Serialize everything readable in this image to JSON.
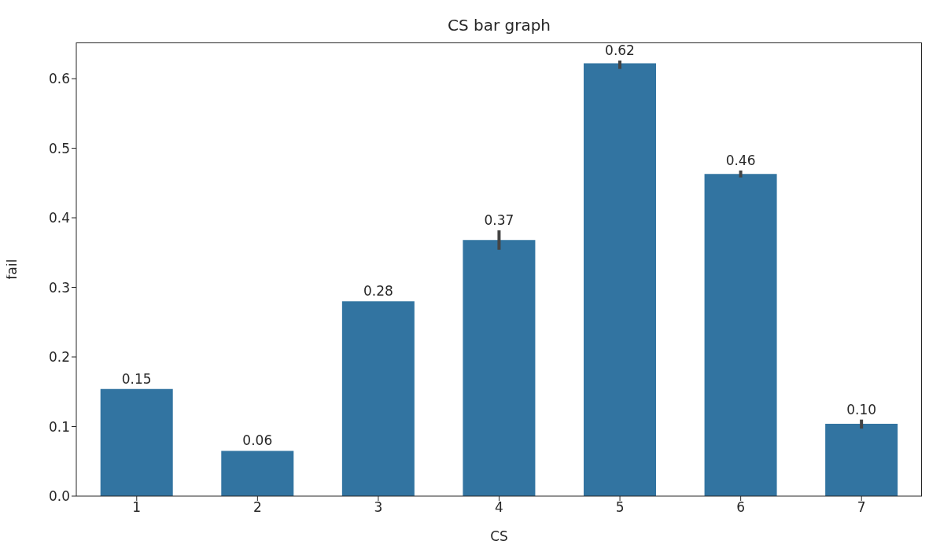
{
  "chart_data": {
    "type": "bar",
    "title": "CS bar graph",
    "xlabel": "CS",
    "ylabel": "fail",
    "categories": [
      "1",
      "2",
      "3",
      "4",
      "5",
      "6",
      "7"
    ],
    "values": [
      0.154,
      0.065,
      0.28,
      0.368,
      0.622,
      0.463,
      0.104
    ],
    "value_labels": [
      "0.15",
      "0.06",
      "0.28",
      "0.37",
      "0.62",
      "0.46",
      "0.10"
    ],
    "errors": [
      null,
      null,
      null,
      [
        0.354,
        0.382
      ],
      [
        0.614,
        0.626
      ],
      [
        0.458,
        0.468
      ],
      [
        0.097,
        0.11
      ]
    ],
    "color": "#3274a1",
    "ylim": [
      0,
      0.652
    ],
    "yticks": [
      {
        "value": 0,
        "label": "0.0"
      },
      0.1,
      0.2,
      0.3,
      0.4,
      0.5,
      0.6
    ],
    "grid": false,
    "legend": false
  }
}
